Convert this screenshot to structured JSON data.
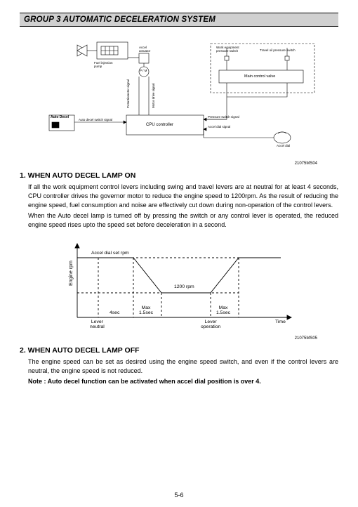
{
  "header": {
    "title": "GROUP  3  AUTOMATIC DECELERATION SYSTEM"
  },
  "diagram": {
    "labels": {
      "fuel_injection_pump": "Fuel injection\npump",
      "accel_actuator": "Accel\nactuator",
      "pm": "P / M",
      "auto_decel_box": "Auto Decel",
      "auto_decel_signal": "Auto decel switch signal",
      "cpu": "CPU controller",
      "work_equip_switch": "Work equipment\npressure switch",
      "travel_switch": "Travel oil pressure switch",
      "main_valve": "Main control valve",
      "pressure_signal": "Pressure switch signal",
      "accel_dial_signal": "Accel dial signal",
      "accel_dial": "Accel dial",
      "potentio_signal": "Potentiometer signal",
      "motor_drive_signal": "Motor drive signal"
    },
    "fig_num": "21075MS04"
  },
  "section1": {
    "title": "1. WHEN AUTO DECEL LAMP ON",
    "p1": "If all the work equipment control levers including swing and travel levers are at neutral for at least 4 seconds, CPU controller drives the governor motor to reduce the engine speed to 1200rpm.   As the result of reducing the engine speed, fuel consumption and noise are effectively cut down during non-operation of the control levers.",
    "p2": "When the Auto decel lamp is turned off by pressing the switch or any control lever is operated, the reduced engine speed rises upto the speed set before deceleration in a second."
  },
  "graph": {
    "y_axis": "Engine rpm",
    "accel_set": "Accel dial set rpm",
    "rpm_low": "1200 rpm",
    "t1": "4sec",
    "t2": "Max\n1.5sec",
    "t3": "Max\n1.5sec",
    "lever_neutral": "Lever\nneutral",
    "lever_op": "Lever\noperation",
    "x_axis": "Time",
    "fig_num": "21075MS05"
  },
  "section2": {
    "title": "2. WHEN AUTO DECEL LAMP OFF",
    "p1": "The engine speed can be set as desired using the engine speed switch, and even if the control levers are neutral, the engine speed is not reduced.",
    "note": "Note : Auto decel function can be activated when accel dial position is over 4."
  },
  "page_number": "5-6"
}
